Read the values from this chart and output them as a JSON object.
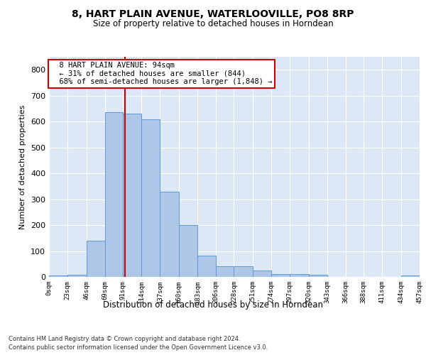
{
  "title": "8, HART PLAIN AVENUE, WATERLOOVILLE, PO8 8RP",
  "subtitle": "Size of property relative to detached houses in Horndean",
  "xlabel_dist": "Distribution of detached houses by size in Horndean",
  "ylabel": "Number of detached properties",
  "footer_line1": "Contains HM Land Registry data © Crown copyright and database right 2024.",
  "footer_line2": "Contains public sector information licensed under the Open Government Licence v3.0.",
  "bin_edges": [
    0,
    23,
    46,
    69,
    91,
    114,
    137,
    160,
    183,
    206,
    228,
    251,
    274,
    297,
    320,
    343,
    366,
    388,
    411,
    434,
    457
  ],
  "bar_heights": [
    5,
    8,
    140,
    635,
    630,
    610,
    330,
    200,
    83,
    40,
    40,
    25,
    12,
    12,
    8,
    0,
    0,
    0,
    0,
    5
  ],
  "bar_color": "#aec6e8",
  "bar_edge_color": "#5b9bd5",
  "property_size": 94,
  "annotation_text": "  8 HART PLAIN AVENUE: 94sqm\n  ← 31% of detached houses are smaller (844)\n  68% of semi-detached houses are larger (1,848) →",
  "annotation_box_color": "#ffffff",
  "annotation_box_edge": "#cc0000",
  "vline_color": "#cc0000",
  "background_color": "#dce8f5",
  "grid_color": "#ffffff",
  "ylim": [
    0,
    850
  ],
  "yticks": [
    0,
    100,
    200,
    300,
    400,
    500,
    600,
    700,
    800
  ],
  "tick_labels": [
    "0sqm",
    "23sqm",
    "46sqm",
    "69sqm",
    "91sqm",
    "114sqm",
    "137sqm",
    "160sqm",
    "183sqm",
    "206sqm",
    "228sqm",
    "251sqm",
    "274sqm",
    "297sqm",
    "320sqm",
    "343sqm",
    "366sqm",
    "388sqm",
    "411sqm",
    "434sqm",
    "457sqm"
  ]
}
